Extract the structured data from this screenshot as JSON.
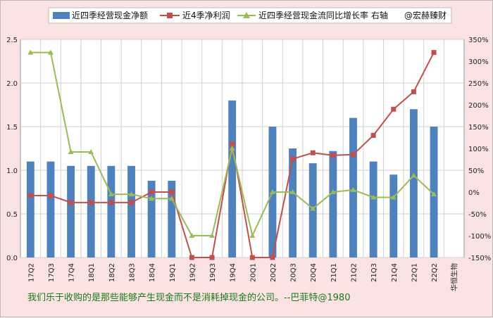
{
  "chart_data": {
    "type": "bar+line",
    "categories": [
      "17Q2",
      "17Q3",
      "17Q4",
      "18Q1",
      "18Q2",
      "18Q3",
      "18Q4",
      "19Q1",
      "19Q2",
      "19Q3",
      "19Q4",
      "20Q1",
      "20Q2",
      "20Q3",
      "20Q4",
      "21Q1",
      "21Q2",
      "21Q3",
      "21Q4",
      "22Q1",
      "22Q2"
    ],
    "extra_category_label": "华恒生物",
    "series": [
      {
        "name": "近四季经营现金净额",
        "kind": "bar",
        "axis": "left",
        "values": [
          1.1,
          1.1,
          1.05,
          1.05,
          1.05,
          1.05,
          0.88,
          0.88,
          null,
          null,
          1.8,
          null,
          1.5,
          1.25,
          1.08,
          1.22,
          1.6,
          1.1,
          0.95,
          1.7,
          1.5
        ]
      },
      {
        "name": "近4季净利润",
        "kind": "line",
        "axis": "left",
        "values": [
          0.71,
          0.71,
          0.63,
          0.63,
          0.63,
          0.63,
          0.75,
          0.75,
          0.0,
          0.0,
          1.3,
          0.0,
          0.0,
          1.13,
          1.2,
          1.17,
          1.18,
          1.4,
          1.7,
          1.9,
          2.35
        ]
      },
      {
        "name": "近四季经营现金流同比增长率 右轴",
        "kind": "line",
        "axis": "right",
        "values": [
          320,
          320,
          92,
          92,
          -5,
          -5,
          -15,
          -15,
          -100,
          -100,
          100,
          -100,
          0,
          0,
          -38,
          0,
          5,
          -12,
          -12,
          38,
          -5
        ]
      }
    ],
    "left_axis": {
      "min": 0,
      "max": 2.5,
      "step": 0.5,
      "ticks": [
        "0.0",
        "0.5",
        "1.0",
        "1.5",
        "2.0",
        "2.5"
      ]
    },
    "right_axis": {
      "min": -150,
      "max": 350,
      "step": 50,
      "ticks": [
        "-150%",
        "-100%",
        "-50%",
        "0%",
        "50%",
        "100%",
        "150%",
        "200%",
        "250%",
        "300%",
        "350%"
      ]
    },
    "grid": true,
    "legend_position": "top",
    "watermark": "@宏赫臻财",
    "colors": {
      "bar": "#4f81bd",
      "profit": "#c0504d",
      "growth": "#9bbb59"
    }
  },
  "footer_quote": "我们乐于收购的是那些能够产生现金而不是消耗掉现金的公司。--巴菲特@1980"
}
